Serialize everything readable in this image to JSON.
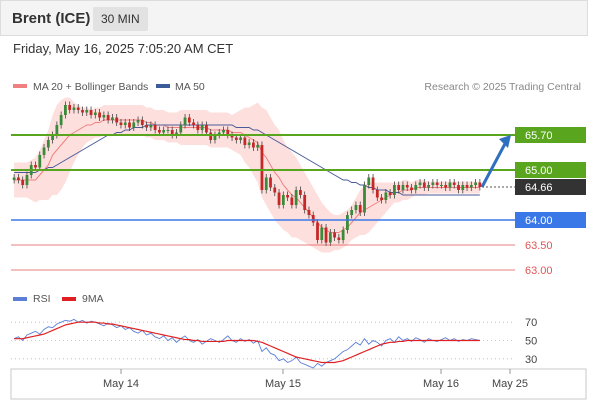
{
  "header": {
    "instrument": "Brent (ICE)",
    "interval": "30 MIN"
  },
  "timestamp": "Friday, May 16, 2025 7:05:20 AM CET",
  "legend": {
    "bollinger": "MA 20 + Bollinger Bands",
    "ma50": "MA 50",
    "copyright": "Research © 2025 Trading Central",
    "rsi": "RSI",
    "rsi_ma": "9MA"
  },
  "colors": {
    "up_candle": "#3a8a3a",
    "down_candle": "#c62828",
    "bollinger_fill": "#fde0dd",
    "ma20": "#f08080",
    "ma50": "#4a5a9a",
    "resistance": "#5aa51e",
    "support": "#3b78e7",
    "target": "#e05555",
    "rsi": "#5b7fd6",
    "rsi_ma": "#e02020",
    "arrow": "#2f6fc0"
  },
  "chart_data": [
    {
      "type": "candlestick",
      "title": "Brent (ICE)",
      "ylim": [
        62.8,
        66.4
      ],
      "x_ticks": [
        "May 14",
        "May 15",
        "May 16",
        "May 25"
      ],
      "levels": [
        {
          "label": "65.70",
          "value": 65.7,
          "kind": "resistance"
        },
        {
          "label": "65.00",
          "value": 65.0,
          "kind": "resistance"
        },
        {
          "label": "64.66",
          "value": 64.66,
          "kind": "last"
        },
        {
          "label": "64.00",
          "value": 64.0,
          "kind": "support"
        },
        {
          "label": "63.50",
          "value": 63.5,
          "kind": "target"
        },
        {
          "label": "63.00",
          "value": 63.0,
          "kind": "target"
        }
      ],
      "close": [
        64.85,
        64.8,
        64.7,
        64.9,
        65.1,
        65.05,
        65.3,
        65.45,
        65.6,
        65.7,
        65.9,
        66.1,
        66.3,
        66.2,
        66.25,
        66.2,
        66.15,
        66.2,
        66.1,
        66.15,
        66.05,
        66.1,
        66.0,
        66.05,
        65.95,
        65.9,
        65.95,
        65.85,
        65.95,
        66.0,
        65.9,
        65.85,
        65.9,
        65.8,
        65.75,
        65.8,
        65.8,
        65.7,
        65.75,
        65.9,
        66.05,
        65.95,
        65.9,
        65.8,
        65.9,
        65.75,
        65.6,
        65.7,
        65.75,
        65.8,
        65.7,
        65.65,
        65.6,
        65.65,
        65.5,
        65.55,
        65.45,
        65.5,
        64.6,
        64.85,
        64.65,
        64.55,
        64.3,
        64.5,
        64.45,
        64.3,
        64.6,
        64.5,
        64.2,
        64.1,
        63.95,
        63.6,
        63.85,
        63.55,
        63.75,
        63.65,
        63.6,
        63.8,
        64.1,
        64.2,
        64.3,
        64.15,
        64.7,
        64.85,
        64.6,
        64.45,
        64.4,
        64.55,
        64.5,
        64.7,
        64.6,
        64.7,
        64.65,
        64.6,
        64.7,
        64.75,
        64.65,
        64.7,
        64.75,
        64.7,
        64.7,
        64.65,
        64.75,
        64.7,
        64.6,
        64.7,
        64.65,
        64.7,
        64.75,
        64.66
      ],
      "ma20": [
        64.8,
        64.8,
        64.8,
        64.8,
        64.8,
        64.8,
        64.9,
        65.0,
        65.1,
        65.3,
        65.4,
        65.5,
        65.6,
        65.7,
        65.75,
        65.8,
        65.85,
        65.9,
        65.9,
        65.95,
        65.95,
        66.0,
        66.0,
        66.0,
        66.0,
        66.0,
        66.0,
        66.0,
        66.0,
        66.0,
        66.0,
        65.95,
        65.95,
        65.9,
        65.9,
        65.9,
        65.85,
        65.85,
        65.85,
        65.85,
        65.85,
        65.85,
        65.85,
        65.85,
        65.85,
        65.85,
        65.8,
        65.8,
        65.8,
        65.8,
        65.8,
        65.75,
        65.75,
        65.75,
        65.7,
        65.65,
        65.6,
        65.55,
        65.35,
        65.25,
        65.1,
        64.95,
        64.85,
        64.7,
        64.6,
        64.5,
        64.45,
        64.35,
        64.25,
        64.15,
        64.05,
        63.95,
        63.85,
        63.8,
        63.75,
        63.75,
        63.75,
        63.8,
        63.85,
        63.95,
        64.05,
        64.15,
        64.2,
        64.25,
        64.3,
        64.35,
        64.4,
        64.45,
        64.5,
        64.55,
        64.55,
        64.6,
        64.6,
        64.6,
        64.65,
        64.65,
        64.65,
        64.65,
        64.65,
        64.65,
        64.65,
        64.65,
        64.65,
        64.65,
        64.65,
        64.65,
        64.65,
        64.65,
        64.65,
        64.65
      ],
      "ma50": [
        64.95,
        64.95,
        64.95,
        64.95,
        64.95,
        64.95,
        65.0,
        65.0,
        65.05,
        65.05,
        65.1,
        65.15,
        65.2,
        65.25,
        65.3,
        65.35,
        65.4,
        65.45,
        65.5,
        65.55,
        65.6,
        65.65,
        65.7,
        65.7,
        65.75,
        65.75,
        65.8,
        65.8,
        65.85,
        65.85,
        65.85,
        65.9,
        65.9,
        65.9,
        65.9,
        65.9,
        65.9,
        65.9,
        65.9,
        65.9,
        65.9,
        65.9,
        65.9,
        65.9,
        65.9,
        65.9,
        65.9,
        65.9,
        65.9,
        65.9,
        65.9,
        65.9,
        65.85,
        65.85,
        65.85,
        65.85,
        65.8,
        65.8,
        65.75,
        65.7,
        65.65,
        65.6,
        65.55,
        65.5,
        65.45,
        65.4,
        65.35,
        65.3,
        65.25,
        65.2,
        65.15,
        65.1,
        65.05,
        65.0,
        64.95,
        64.9,
        64.85,
        64.8,
        64.8,
        64.75,
        64.75,
        64.7,
        64.7,
        64.65,
        64.65,
        64.6,
        64.6,
        64.6,
        64.55,
        64.55,
        64.55,
        64.5,
        64.5,
        64.5,
        64.5,
        64.5,
        64.5,
        64.5,
        64.5,
        64.5,
        64.5,
        64.5,
        64.5,
        64.5,
        64.5,
        64.5,
        64.5,
        64.5,
        64.5,
        64.5
      ],
      "bb_width": [
        0.35,
        0.35,
        0.35,
        0.35,
        0.4,
        0.45,
        0.5,
        0.6,
        0.7,
        0.8,
        0.9,
        0.9,
        0.85,
        0.75,
        0.6,
        0.5,
        0.4,
        0.35,
        0.3,
        0.3,
        0.3,
        0.3,
        0.3,
        0.3,
        0.3,
        0.3,
        0.3,
        0.3,
        0.3,
        0.3,
        0.3,
        0.3,
        0.3,
        0.3,
        0.3,
        0.3,
        0.3,
        0.3,
        0.3,
        0.35,
        0.35,
        0.35,
        0.35,
        0.35,
        0.35,
        0.35,
        0.35,
        0.35,
        0.35,
        0.35,
        0.35,
        0.35,
        0.4,
        0.45,
        0.55,
        0.6,
        0.7,
        0.8,
        0.9,
        0.95,
        0.95,
        0.95,
        0.95,
        0.9,
        0.85,
        0.85,
        0.8,
        0.75,
        0.7,
        0.65,
        0.6,
        0.55,
        0.5,
        0.45,
        0.4,
        0.35,
        0.35,
        0.35,
        0.35,
        0.35,
        0.4,
        0.45,
        0.5,
        0.5,
        0.45,
        0.4,
        0.35,
        0.3,
        0.25,
        0.2,
        0.2,
        0.2,
        0.2,
        0.15,
        0.15,
        0.15,
        0.15,
        0.12,
        0.12,
        0.12,
        0.12,
        0.12,
        0.12,
        0.12,
        0.12,
        0.12,
        0.12,
        0.12,
        0.12,
        0.12
      ],
      "projection": {
        "from": 64.66,
        "to": 65.7
      }
    },
    {
      "type": "line",
      "title": "RSI",
      "ylim": [
        20,
        80
      ],
      "y_ticks": [
        70,
        50,
        30
      ],
      "series": [
        {
          "name": "RSI",
          "values": [
            52,
            54,
            50,
            56,
            58,
            60,
            57,
            62,
            65,
            64,
            68,
            70,
            72,
            71,
            73,
            70,
            72,
            69,
            71,
            70,
            68,
            66,
            69,
            67,
            64,
            66,
            62,
            64,
            60,
            58,
            61,
            56,
            58,
            54,
            52,
            55,
            50,
            53,
            48,
            52,
            55,
            50,
            48,
            51,
            46,
            49,
            52,
            50,
            48,
            51,
            55,
            50,
            48,
            52,
            49,
            51,
            47,
            50,
            38,
            42,
            36,
            34,
            28,
            30,
            26,
            28,
            32,
            26,
            24,
            22,
            20,
            25,
            22,
            26,
            28,
            30,
            34,
            38,
            40,
            44,
            48,
            45,
            52,
            46,
            50,
            48,
            44,
            50,
            52,
            48,
            54,
            50,
            52,
            49,
            53,
            51,
            48,
            52,
            50,
            49,
            51,
            53,
            50,
            52,
            49,
            51,
            50,
            52,
            51,
            50
          ]
        },
        {
          "name": "9MA",
          "values": [
            52,
            52,
            52,
            53,
            54,
            55,
            56,
            57,
            59,
            61,
            63,
            65,
            67,
            68,
            69,
            70,
            70,
            70,
            70,
            70,
            69,
            69,
            68,
            68,
            67,
            66,
            65,
            64,
            63,
            62,
            61,
            60,
            59,
            58,
            57,
            56,
            55,
            54,
            53,
            52,
            51,
            51,
            50,
            50,
            49,
            49,
            49,
            49,
            49,
            49,
            50,
            50,
            50,
            50,
            50,
            50,
            50,
            49,
            48,
            46,
            44,
            42,
            40,
            38,
            36,
            34,
            32,
            31,
            30,
            29,
            28,
            27,
            26,
            26,
            26,
            26,
            27,
            28,
            30,
            32,
            34,
            36,
            38,
            40,
            42,
            44,
            46,
            47,
            48,
            48,
            49,
            49,
            50,
            50,
            50,
            50,
            50,
            50,
            50,
            50,
            50,
            50,
            50,
            50,
            50,
            50,
            50,
            50,
            50,
            50
          ]
        }
      ]
    }
  ]
}
